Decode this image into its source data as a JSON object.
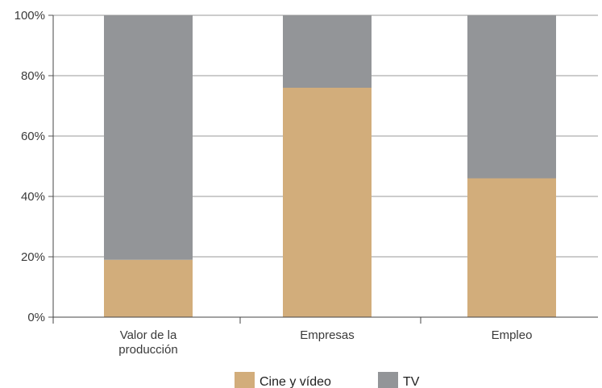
{
  "chart_data": {
    "type": "bar",
    "stacked": true,
    "categories": [
      [
        "Valor de la",
        "producción"
      ],
      [
        "Empresas"
      ],
      [
        "Empleo"
      ]
    ],
    "series": [
      {
        "name": "Cine y vídeo",
        "values": [
          19,
          76,
          46
        ],
        "color": "#d2ad7b"
      },
      {
        "name": "TV",
        "values": [
          81,
          24,
          54
        ],
        "color": "#939598"
      }
    ],
    "ylim": [
      0,
      100
    ],
    "yticks": [
      "0%",
      "20%",
      "40%",
      "60%",
      "80%",
      "100%"
    ],
    "grid": true,
    "legend_position": "bottom"
  }
}
